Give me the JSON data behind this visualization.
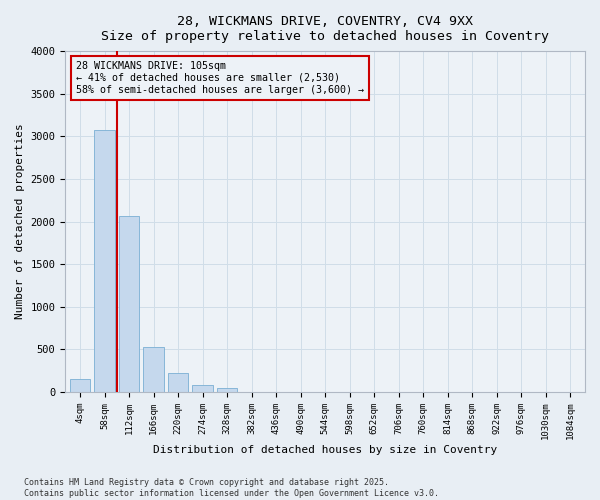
{
  "title_line1": "28, WICKMANS DRIVE, COVENTRY, CV4 9XX",
  "title_line2": "Size of property relative to detached houses in Coventry",
  "xlabel": "Distribution of detached houses by size in Coventry",
  "ylabel": "Number of detached properties",
  "annotation_title": "28 WICKMANS DRIVE: 105sqm",
  "annotation_line2": "← 41% of detached houses are smaller (2,530)",
  "annotation_line3": "58% of semi-detached houses are larger (3,600) →",
  "footer_line1": "Contains HM Land Registry data © Crown copyright and database right 2025.",
  "footer_line2": "Contains public sector information licensed under the Open Government Licence v3.0.",
  "bar_color": "#c5d8ed",
  "bar_edge_color": "#7aafd4",
  "grid_color": "#d0dde8",
  "annotation_box_color": "#cc0000",
  "vline_color": "#cc0000",
  "background_color": "#e8eef4",
  "plot_bg_color": "#edf2f7",
  "categories": [
    "4sqm",
    "58sqm",
    "112sqm",
    "166sqm",
    "220sqm",
    "274sqm",
    "328sqm",
    "382sqm",
    "436sqm",
    "490sqm",
    "544sqm",
    "598sqm",
    "652sqm",
    "706sqm",
    "760sqm",
    "814sqm",
    "868sqm",
    "922sqm",
    "976sqm",
    "1030sqm",
    "1084sqm"
  ],
  "values": [
    150,
    3080,
    2060,
    530,
    220,
    80,
    50,
    0,
    0,
    0,
    0,
    0,
    0,
    0,
    0,
    0,
    0,
    0,
    0,
    0,
    0
  ],
  "ylim": [
    0,
    4000
  ],
  "yticks": [
    0,
    500,
    1000,
    1500,
    2000,
    2500,
    3000,
    3500,
    4000
  ],
  "vline_position": 1.5,
  "figsize": [
    6.0,
    5.0
  ],
  "dpi": 100
}
